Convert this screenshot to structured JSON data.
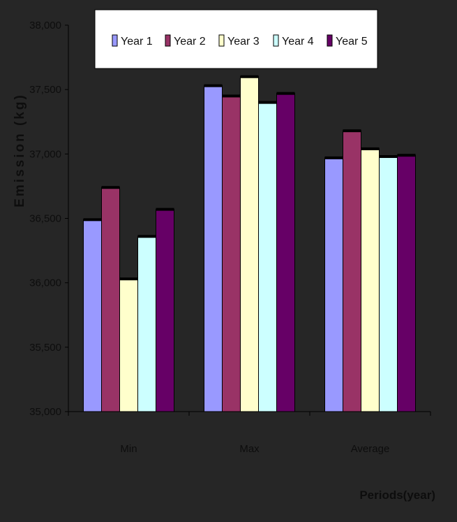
{
  "chart_data": {
    "type": "bar",
    "ylabel": "Emission (kg)",
    "xlabel": "Periods(year)",
    "categories": [
      "Min",
      "Max",
      "Average"
    ],
    "ylim": [
      35000,
      38000
    ],
    "yticks": [
      "35,000",
      "35,500",
      "36,000",
      "36,500",
      "37,000",
      "37,500",
      "38,000"
    ],
    "ytick_values": [
      35000,
      35500,
      36000,
      36500,
      37000,
      37500,
      38000
    ],
    "series": [
      {
        "name": "Year 1",
        "color": "#9999ff",
        "values": [
          36490,
          37530,
          36970
        ]
      },
      {
        "name": "Year 2",
        "color": "#993366",
        "values": [
          36740,
          37450,
          37180
        ]
      },
      {
        "name": "Year 3",
        "color": "#ffffcc",
        "values": [
          36030,
          37600,
          37040
        ]
      },
      {
        "name": "Year 4",
        "color": "#ccffff",
        "values": [
          36360,
          37400,
          36980
        ]
      },
      {
        "name": "Year 5",
        "color": "#660066",
        "values": [
          36570,
          37470,
          36990
        ]
      }
    ],
    "legend_position": "top",
    "grid": false
  }
}
